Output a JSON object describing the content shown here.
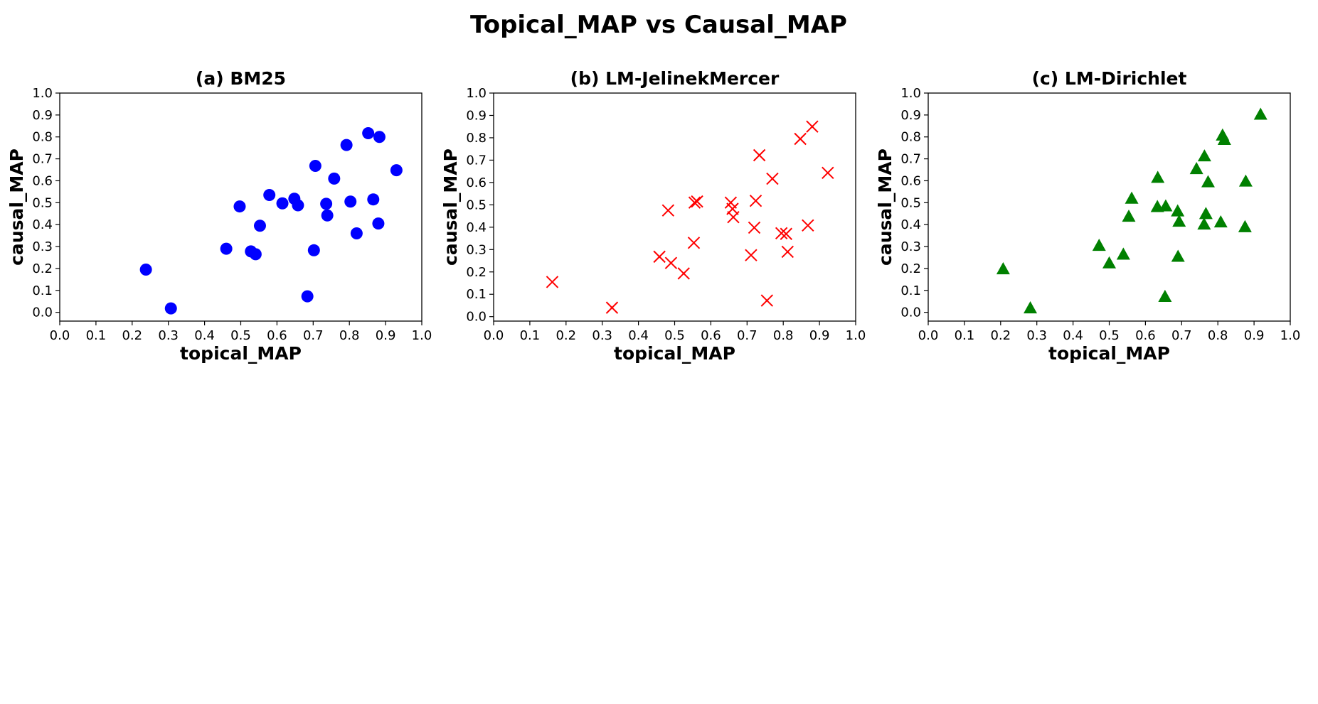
{
  "figure_title": "Topical_MAP vs Causal_MAP",
  "chart_data": [
    {
      "type": "scatter",
      "title": "(a) BM25",
      "xlabel": "topical_MAP",
      "ylabel": "causal_MAP",
      "xlim": [
        0.0,
        1.0
      ],
      "ylim": [
        -0.04,
        1.0
      ],
      "xticks": [
        "0.0",
        "0.1",
        "0.2",
        "0.3",
        "0.4",
        "0.5",
        "0.6",
        "0.7",
        "0.8",
        "0.9",
        "1.0"
      ],
      "yticks": [
        "0.0",
        "0.1",
        "0.2",
        "0.3",
        "0.4",
        "0.5",
        "0.6",
        "0.7",
        "0.8",
        "0.9",
        "1.0"
      ],
      "marker": "circle",
      "color": "#0000ff",
      "grid": false,
      "x": [
        0.238,
        0.307,
        0.46,
        0.497,
        0.528,
        0.541,
        0.553,
        0.579,
        0.615,
        0.648,
        0.658,
        0.684,
        0.702,
        0.706,
        0.736,
        0.739,
        0.758,
        0.792,
        0.803,
        0.82,
        0.852,
        0.866,
        0.88,
        0.883,
        0.93
      ],
      "y": [
        0.195,
        0.018,
        0.29,
        0.483,
        0.278,
        0.265,
        0.395,
        0.535,
        0.497,
        0.518,
        0.488,
        0.073,
        0.283,
        0.668,
        0.495,
        0.442,
        0.61,
        0.763,
        0.505,
        0.36,
        0.817,
        0.515,
        0.405,
        0.8,
        0.648
      ]
    },
    {
      "type": "scatter",
      "title": "(b) LM-JelinekMercer",
      "xlabel": "topical_MAP",
      "ylabel": "causal_MAP",
      "xlim": [
        0.0,
        1.0
      ],
      "ylim": [
        -0.02,
        1.0
      ],
      "xticks": [
        "0.0",
        "0.1",
        "0.2",
        "0.3",
        "0.4",
        "0.5",
        "0.6",
        "0.7",
        "0.8",
        "0.9",
        "1.0"
      ],
      "yticks": [
        "0.0",
        "0.1",
        "0.2",
        "0.3",
        "0.4",
        "0.5",
        "0.6",
        "0.7",
        "0.8",
        "0.9",
        "1.0"
      ],
      "marker": "x",
      "color": "#ff0000",
      "grid": false,
      "x": [
        0.162,
        0.327,
        0.458,
        0.482,
        0.49,
        0.525,
        0.553,
        0.555,
        0.562,
        0.655,
        0.66,
        0.662,
        0.711,
        0.72,
        0.724,
        0.734,
        0.755,
        0.77,
        0.795,
        0.808,
        0.812,
        0.847,
        0.868,
        0.88,
        0.923
      ],
      "y": [
        0.155,
        0.04,
        0.268,
        0.475,
        0.24,
        0.193,
        0.33,
        0.51,
        0.515,
        0.51,
        0.482,
        0.445,
        0.275,
        0.398,
        0.518,
        0.722,
        0.072,
        0.617,
        0.373,
        0.37,
        0.29,
        0.795,
        0.408,
        0.85,
        0.643
      ]
    },
    {
      "type": "scatter",
      "title": "(c) LM-Dirichlet",
      "xlabel": "topical_MAP",
      "ylabel": "causal_MAP",
      "xlim": [
        0.0,
        1.0
      ],
      "ylim": [
        -0.04,
        1.0
      ],
      "xticks": [
        "0.0",
        "0.1",
        "0.2",
        "0.3",
        "0.4",
        "0.5",
        "0.6",
        "0.7",
        "0.8",
        "0.9",
        "1.0"
      ],
      "yticks": [
        "0.0",
        "0.1",
        "0.2",
        "0.3",
        "0.4",
        "0.5",
        "0.6",
        "0.7",
        "0.8",
        "0.9",
        "1.0"
      ],
      "marker": "triangle",
      "color": "#008000",
      "grid": false,
      "x": [
        0.207,
        0.282,
        0.472,
        0.5,
        0.539,
        0.554,
        0.562,
        0.633,
        0.634,
        0.656,
        0.654,
        0.689,
        0.69,
        0.693,
        0.741,
        0.762,
        0.763,
        0.767,
        0.773,
        0.808,
        0.813,
        0.818,
        0.875,
        0.877,
        0.918
      ],
      "y": [
        0.198,
        0.02,
        0.305,
        0.225,
        0.265,
        0.438,
        0.52,
        0.482,
        0.615,
        0.485,
        0.072,
        0.462,
        0.255,
        0.415,
        0.655,
        0.402,
        0.713,
        0.45,
        0.595,
        0.412,
        0.808,
        0.788,
        0.39,
        0.598,
        0.903
      ]
    }
  ]
}
